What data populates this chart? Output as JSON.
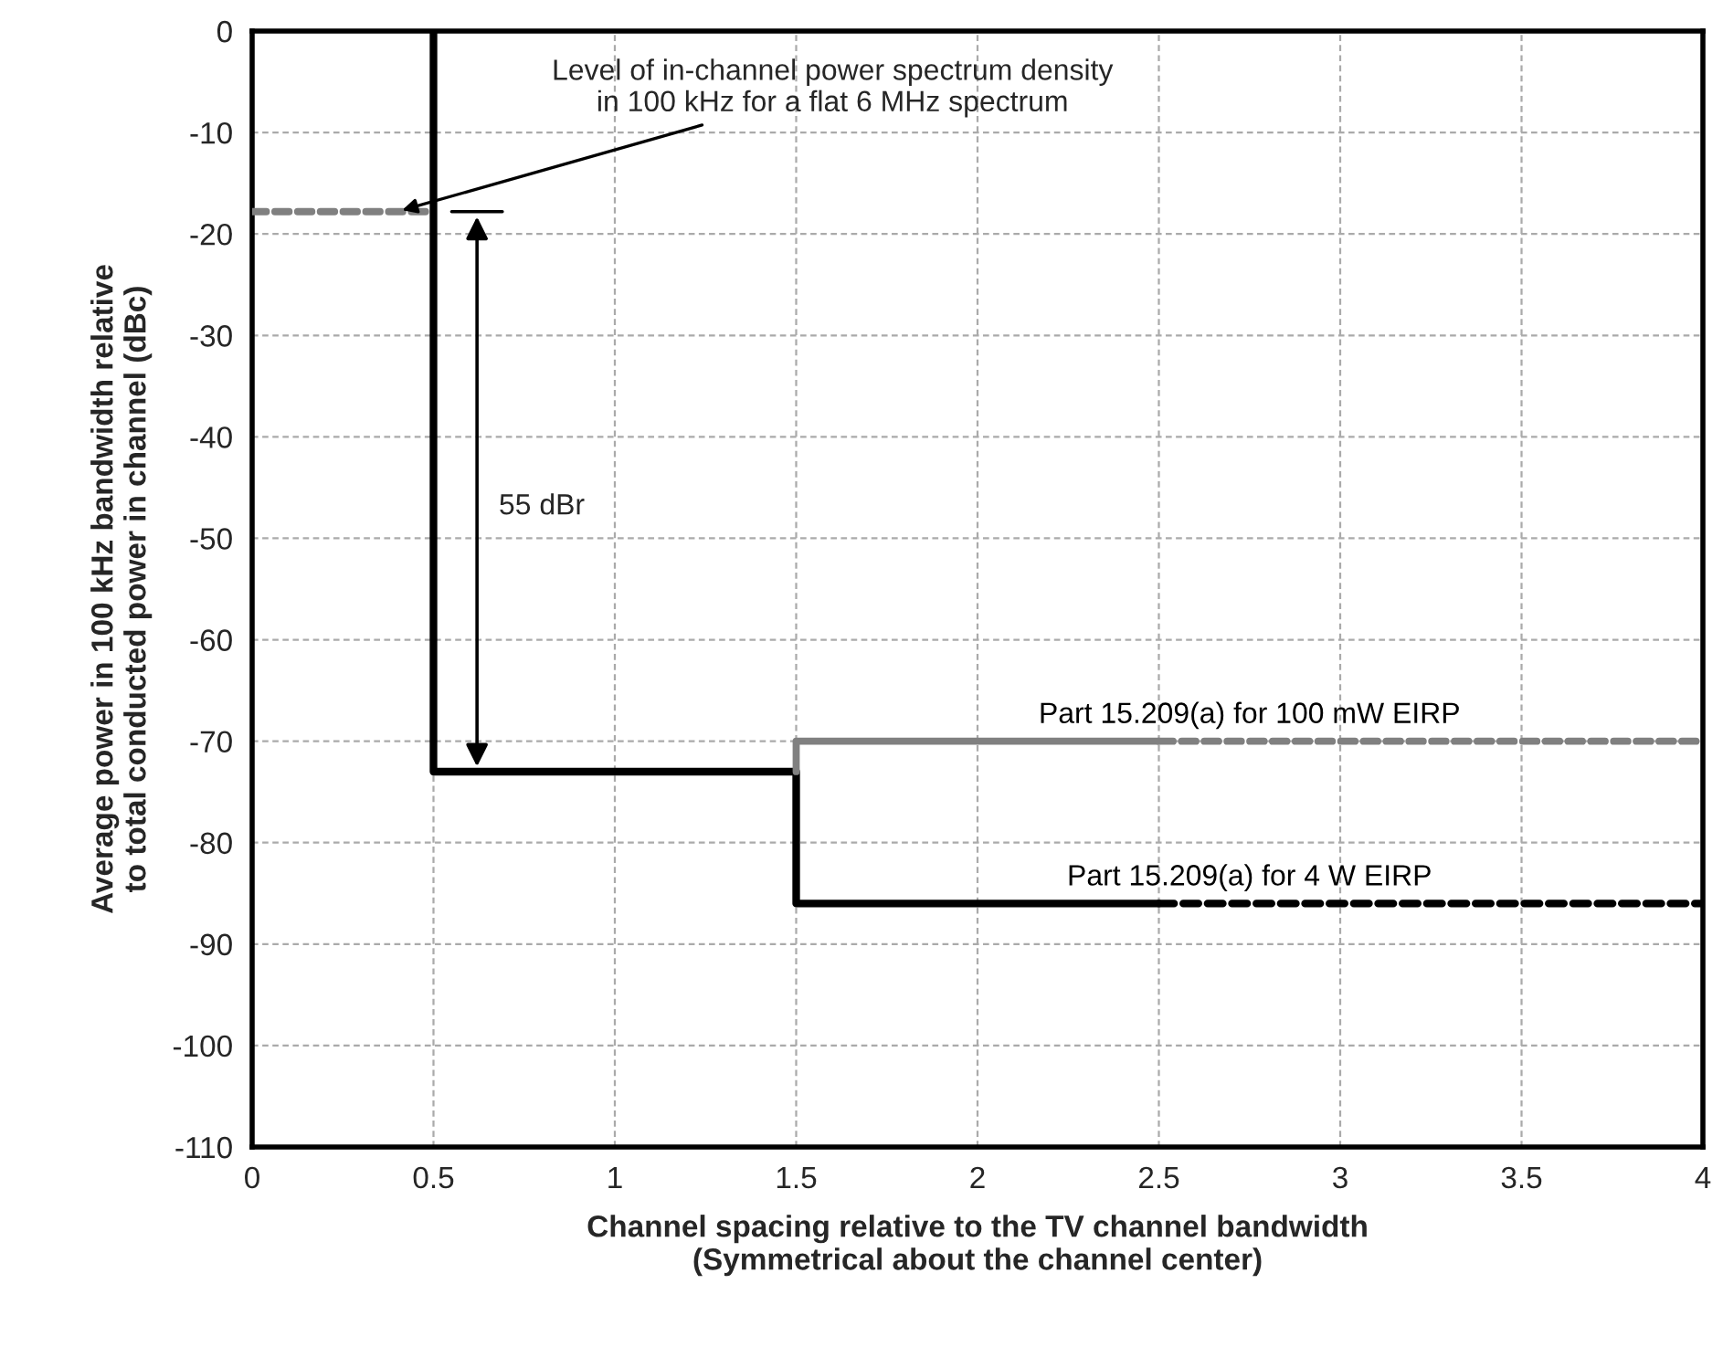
{
  "chart_data": {
    "type": "line",
    "xlabel": "Channel spacing relative to the TV channel bandwidth\n(Symmetrical about the channel center)",
    "ylabel": "Average power in 100 kHz bandwidth relative\nto total conducted power in channel (dBc)",
    "series": [
      {
        "name": "Part 15.209(a) for 4 W EIRP",
        "color": "#000000",
        "x": [
          0.5,
          0.5,
          1.5,
          1.5,
          2.5
        ],
        "values": [
          0,
          -73,
          -73,
          -86,
          -86
        ],
        "line_style": "solid"
      },
      {
        "color": "#000000",
        "x": [
          2.5,
          4
        ],
        "values": [
          -86,
          -86
        ],
        "line_style": "dotted"
      },
      {
        "name": "Part 15.209(a) for 100 mW EIRP",
        "color": "#808080",
        "x": [
          1.5,
          1.5,
          2.5
        ],
        "values": [
          -73,
          -70,
          -70
        ],
        "line_style": "solid"
      },
      {
        "color": "#808080",
        "x": [
          2.5,
          4
        ],
        "values": [
          -70,
          -70
        ],
        "line_style": "dotted"
      },
      {
        "color": "#808080",
        "x": [
          0,
          0.5
        ],
        "values": [
          -17.8,
          -17.8
        ],
        "line_style": "dotted"
      }
    ],
    "annotations": [
      {
        "text": "Level of in-channel power spectrum density\nin 100 kHz for a flat 6 MHz spectrum",
        "x": 0.4,
        "y": -17.8
      },
      "55 dBr"
    ],
    "xlim": [
      0,
      4
    ],
    "ylim": [
      -110,
      0
    ],
    "xticks": [
      0,
      0.5,
      1,
      1.5,
      2,
      2.5,
      3,
      3.5,
      4
    ],
    "yticks": [
      -110,
      -100,
      -90,
      -80,
      -70,
      -60,
      -50,
      -40,
      -30,
      -20,
      -10,
      0
    ],
    "grid": true
  }
}
